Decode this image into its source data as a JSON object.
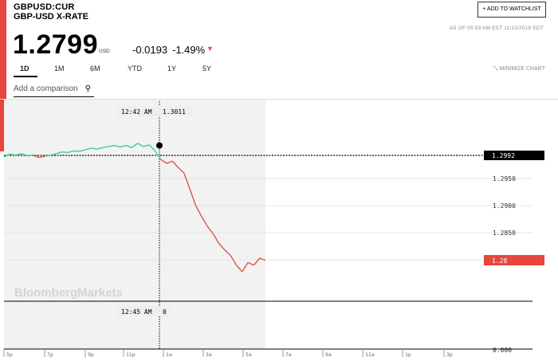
{
  "header": {
    "ticker": "GBPUSD:CUR",
    "subtitle": "GBP-USD X-RATE",
    "watchlist_button": "+ ADD TO WATCHLIST",
    "as_of": "AS OF 05:59 AM EST 11/15/2018 EDT"
  },
  "quote": {
    "price": "1.2799",
    "currency": "USD",
    "change": "-0.0193",
    "change_pct": "-1.49%",
    "direction_icon": "triangle-down-icon",
    "down_color": "#e8453c"
  },
  "tabs": [
    "1D",
    "1M",
    "6M",
    "YTD",
    "1Y",
    "5Y"
  ],
  "active_tab": "1D",
  "minimize_label": "MINIMIZE CHART",
  "compare": {
    "placeholder": "Add a comparison",
    "icon": "search-icon"
  },
  "chart": {
    "crosshair_time_label": "12:42 AM",
    "crosshair_value_label": "1.3011",
    "bottom_time_label": "12:45 AM",
    "bottom_value_label": "0",
    "prev_close_label": "1.2992",
    "last_label": "1.28",
    "watermark": "BloombergMarkets",
    "up_color": "#2ecc8f",
    "down_color": "#e8453c"
  },
  "chart_data": {
    "type": "line",
    "y_ticks": [
      "1.2950",
      "1.2900",
      "1.2850"
    ],
    "y_zero_label": "0.000",
    "x_ticks": [
      "5p",
      "7p",
      "9p",
      "11p",
      "1a",
      "3a",
      "5a",
      "7a",
      "9a",
      "11a",
      "1p",
      "3p"
    ],
    "previous_close": 1.2992,
    "last": 1.28,
    "series": [
      {
        "values": [
          [
            0,
            1.299
          ],
          [
            0.5,
            1.2995
          ],
          [
            1,
            1.2993
          ],
          [
            1.5,
            1.2996
          ],
          [
            2,
            1.2992
          ],
          [
            2.5,
            1.2993
          ],
          [
            3,
            1.2989
          ],
          [
            3.5,
            1.2991
          ],
          [
            4,
            1.2993
          ],
          [
            4.5,
            1.2996
          ],
          [
            5,
            1.2999
          ],
          [
            5.5,
            1.2998
          ],
          [
            6,
            1.3001
          ],
          [
            6.5,
            1.3
          ],
          [
            7,
            1.3003
          ],
          [
            7.5,
            1.3006
          ],
          [
            8,
            1.3004
          ],
          [
            8.5,
            1.3007
          ],
          [
            9,
            1.3009
          ],
          [
            9.5,
            1.3011
          ],
          [
            10,
            1.3008
          ],
          [
            10.5,
            1.3011
          ],
          [
            11,
            1.3007
          ],
          [
            11.5,
            1.3015
          ],
          [
            12,
            1.3009
          ],
          [
            12.5,
            1.3012
          ],
          [
            13,
            1.3001
          ],
          [
            13.5,
            1.2985
          ],
          [
            14,
            1.2978
          ],
          [
            14.5,
            1.2982
          ],
          [
            15,
            1.297
          ],
          [
            15.5,
            1.296
          ],
          [
            16,
            1.293
          ],
          [
            16.5,
            1.29
          ],
          [
            17,
            1.288
          ],
          [
            17.5,
            1.2862
          ],
          [
            18,
            1.2848
          ],
          [
            18.5,
            1.283
          ],
          [
            19,
            1.2818
          ],
          [
            19.5,
            1.2808
          ],
          [
            20,
            1.279
          ],
          [
            20.5,
            1.2778
          ],
          [
            21,
            1.2795
          ],
          [
            21.5,
            1.279
          ],
          [
            22,
            1.2803
          ],
          [
            22.5,
            1.2799
          ]
        ]
      }
    ]
  }
}
